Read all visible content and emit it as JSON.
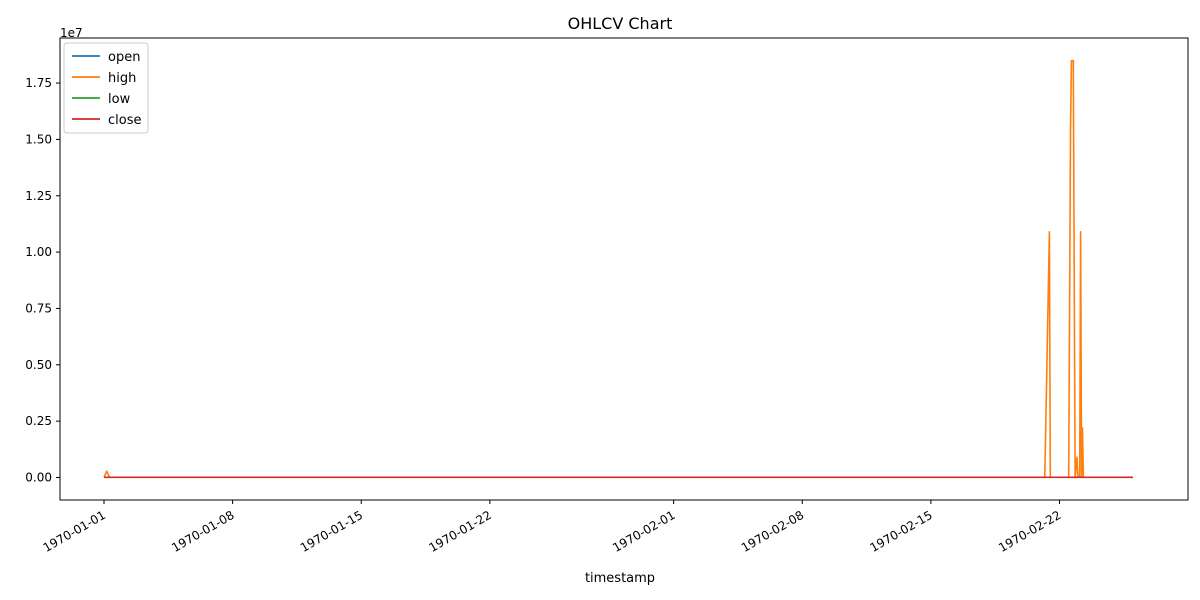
{
  "chart_data": {
    "type": "line",
    "title": "OHLCV Chart",
    "xlabel": "timestamp",
    "ylabel": "",
    "y_offset_label": "1e7",
    "xlim": [
      "1970-01-01",
      "1970-02-26"
    ],
    "ylim": [
      -1000000,
      19500000
    ],
    "x_ticks": [
      "1970-01-01",
      "1970-01-08",
      "1970-01-15",
      "1970-01-22",
      "1970-02-01",
      "1970-02-08",
      "1970-02-15",
      "1970-02-22"
    ],
    "y_ticks": [
      0,
      0.25,
      0.5,
      0.75,
      1.0,
      1.25,
      1.5,
      1.75
    ],
    "y_tick_labels": [
      "0.00",
      "0.25",
      "0.50",
      "0.75",
      "1.00",
      "1.25",
      "1.50",
      "1.75"
    ],
    "y_tick_scale": 10000000,
    "grid": false,
    "legend_position": "top-left",
    "series": [
      {
        "name": "open",
        "color": "#1f77b4",
        "points": [
          [
            "1970-01-01",
            10000
          ],
          [
            "1970-02-26",
            10000
          ]
        ]
      },
      {
        "name": "high",
        "color": "#ff7f0e",
        "points": [
          [
            "1970-01-01",
            10000
          ],
          [
            "1970-01-01.15",
            280000
          ],
          [
            "1970-01-01.3",
            10000
          ],
          [
            "1970-02-21.2",
            10000
          ],
          [
            "1970-02-21.45",
            10900000
          ],
          [
            "1970-02-21.5",
            10000
          ],
          [
            "1970-02-22.5",
            10000
          ],
          [
            "1970-02-22.6",
            15500000
          ],
          [
            "1970-02-22.65",
            18500000
          ],
          [
            "1970-02-22.75",
            18500000
          ],
          [
            "1970-02-22.85",
            10000
          ],
          [
            "1970-02-22.95",
            900000
          ],
          [
            "1970-02-23.0",
            10000
          ],
          [
            "1970-02-23.1",
            10000
          ],
          [
            "1970-02-23.15",
            10900000
          ],
          [
            "1970-02-23.2",
            10000
          ],
          [
            "1970-02-23.25",
            2200000
          ],
          [
            "1970-02-23.3",
            10000
          ],
          [
            "1970-02-26",
            10000
          ]
        ]
      },
      {
        "name": "low",
        "color": "#2ca02c",
        "points": [
          [
            "1970-01-01",
            5000
          ],
          [
            "1970-02-26",
            5000
          ]
        ]
      },
      {
        "name": "close",
        "color": "#d62728",
        "points": [
          [
            "1970-01-01",
            10000
          ],
          [
            "1970-02-26",
            10000
          ]
        ]
      }
    ]
  }
}
